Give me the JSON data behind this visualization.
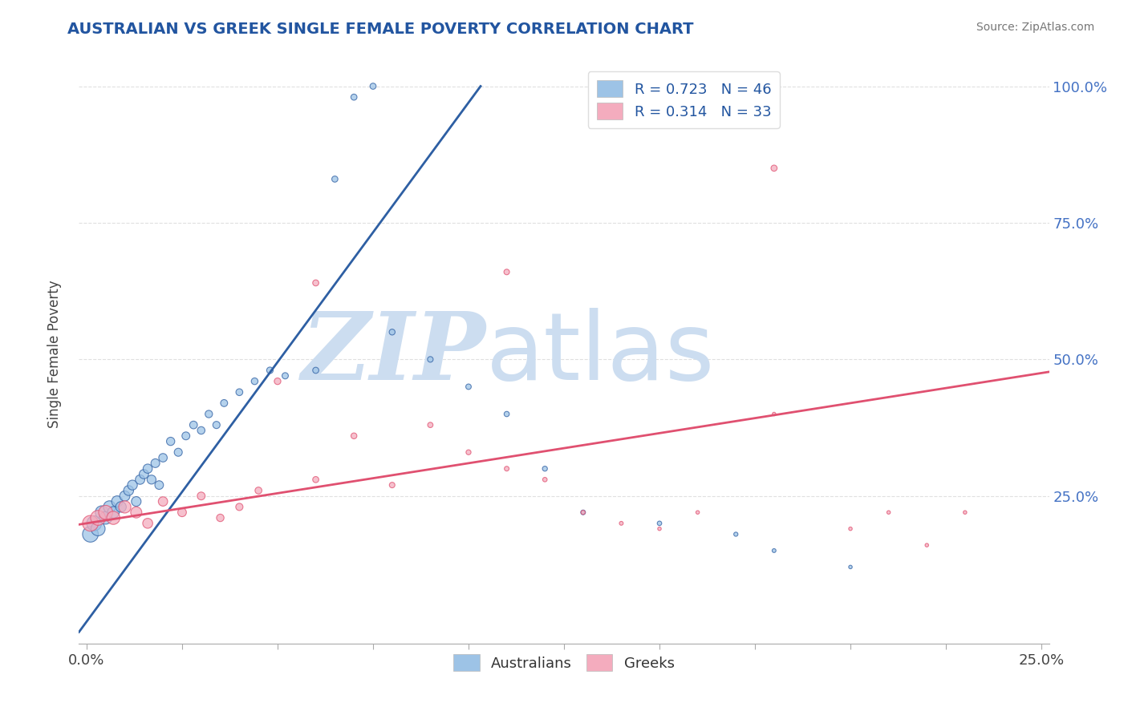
{
  "title": "AUSTRALIAN VS GREEK SINGLE FEMALE POVERTY CORRELATION CHART",
  "source_text": "Source: ZipAtlas.com",
  "ylabel": "Single Female Poverty",
  "xlim": [
    -0.002,
    0.252
  ],
  "ylim": [
    -0.02,
    1.04
  ],
  "yticks_right": [
    0.25,
    0.5,
    0.75,
    1.0
  ],
  "ytick_right_labels": [
    "25.0%",
    "50.0%",
    "75.0%",
    "100.0%"
  ],
  "color_australian": "#9dc3e6",
  "color_greek": "#f4acbe",
  "color_line_australian": "#2e5fa3",
  "color_line_greek": "#e05070",
  "color_dashed": "#8ab4d8",
  "watermark_zip": "ZIP",
  "watermark_atlas": "atlas",
  "watermark_color": "#ccddf0",
  "background_color": "#ffffff",
  "grid_color": "#dddddd",
  "aus_line_slope": 9.5,
  "aus_line_intercept": 0.02,
  "greek_line_slope": 1.1,
  "greek_line_intercept": 0.2,
  "aus_scatter_x": [
    0.001,
    0.002,
    0.003,
    0.004,
    0.005,
    0.006,
    0.007,
    0.008,
    0.009,
    0.01,
    0.011,
    0.012,
    0.013,
    0.014,
    0.015,
    0.016,
    0.017,
    0.018,
    0.019,
    0.02,
    0.022,
    0.024,
    0.026,
    0.028,
    0.03,
    0.032,
    0.034,
    0.036,
    0.04,
    0.044,
    0.048,
    0.052,
    0.06,
    0.065,
    0.07,
    0.075,
    0.08,
    0.09,
    0.1,
    0.11,
    0.12,
    0.13,
    0.15,
    0.17,
    0.18,
    0.2
  ],
  "aus_scatter_y": [
    0.18,
    0.2,
    0.19,
    0.22,
    0.21,
    0.23,
    0.22,
    0.24,
    0.23,
    0.25,
    0.26,
    0.27,
    0.24,
    0.28,
    0.29,
    0.3,
    0.28,
    0.31,
    0.27,
    0.32,
    0.35,
    0.33,
    0.36,
    0.38,
    0.37,
    0.4,
    0.38,
    0.42,
    0.44,
    0.46,
    0.48,
    0.47,
    0.48,
    0.83,
    0.98,
    1.0,
    0.55,
    0.5,
    0.45,
    0.4,
    0.3,
    0.22,
    0.2,
    0.18,
    0.15,
    0.12
  ],
  "aus_scatter_sizes": [
    200,
    180,
    160,
    140,
    130,
    120,
    110,
    100,
    90,
    85,
    80,
    78,
    75,
    72,
    70,
    68,
    65,
    62,
    60,
    58,
    55,
    52,
    50,
    48,
    46,
    44,
    42,
    40,
    38,
    36,
    34,
    32,
    30,
    30,
    30,
    30,
    28,
    26,
    24,
    22,
    20,
    18,
    16,
    14,
    12,
    10
  ],
  "greek_scatter_x": [
    0.001,
    0.003,
    0.005,
    0.007,
    0.01,
    0.013,
    0.016,
    0.02,
    0.025,
    0.03,
    0.035,
    0.04,
    0.045,
    0.05,
    0.06,
    0.07,
    0.08,
    0.09,
    0.1,
    0.11,
    0.12,
    0.13,
    0.14,
    0.15,
    0.16,
    0.18,
    0.2,
    0.21,
    0.22,
    0.23,
    0.06,
    0.11,
    0.18
  ],
  "greek_scatter_y": [
    0.2,
    0.21,
    0.22,
    0.21,
    0.23,
    0.22,
    0.2,
    0.24,
    0.22,
    0.25,
    0.21,
    0.23,
    0.26,
    0.46,
    0.28,
    0.36,
    0.27,
    0.38,
    0.33,
    0.3,
    0.28,
    0.22,
    0.2,
    0.19,
    0.22,
    0.4,
    0.19,
    0.22,
    0.16,
    0.22,
    0.64,
    0.66,
    0.85
  ],
  "greek_scatter_sizes": [
    200,
    180,
    160,
    140,
    120,
    100,
    80,
    70,
    60,
    50,
    45,
    42,
    38,
    35,
    30,
    28,
    25,
    23,
    20,
    18,
    16,
    14,
    12,
    10,
    10,
    10,
    10,
    10,
    10,
    10,
    30,
    25,
    30
  ]
}
